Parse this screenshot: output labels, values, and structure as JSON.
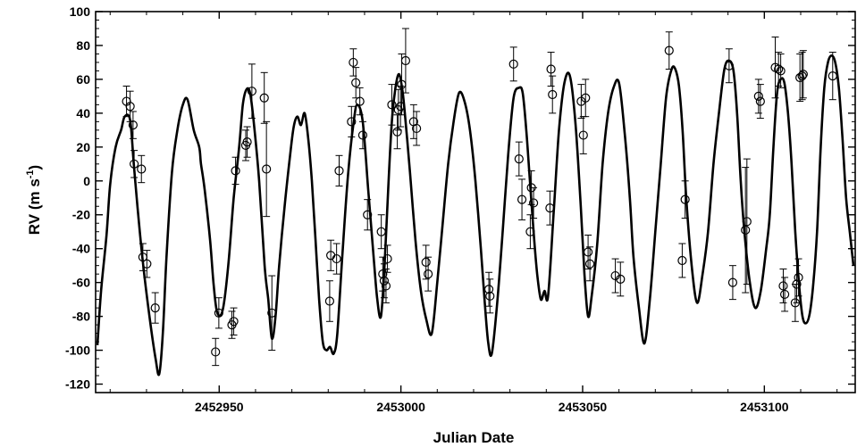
{
  "chart_data": {
    "type": "scatter",
    "title": "",
    "xlabel": "Julian Date",
    "ylabel_main": "RV (m s",
    "ylabel_sup": "-1",
    "ylabel_close": ")",
    "xlim": [
      2452916,
      2453125
    ],
    "ylim": [
      -125,
      100
    ],
    "xticks": [
      2452950,
      2453000,
      2453050,
      2453100
    ],
    "xtick_labels": [
      "2452950",
      "2453000",
      "2453050",
      "2453100"
    ],
    "yticks": [
      100,
      80,
      60,
      40,
      20,
      0,
      -20,
      -40,
      -60,
      -80,
      -100,
      -120
    ],
    "ytick_labels": [
      "100",
      "80",
      "60",
      "40",
      "20",
      "0",
      "-20",
      "-40",
      "-60",
      "-80",
      "-100",
      "-120"
    ],
    "grid": false,
    "series": [
      {
        "kind": "points",
        "x": [
          2452924.5,
          2452925.5,
          2452926.3,
          2452926.6,
          2452928.6,
          2452929.0,
          2452930.1,
          2452932.4,
          2452949.0,
          2452949.9,
          2452953.5,
          2452954.0,
          2452954.5,
          2452957.3,
          2452957.7,
          2452959.0,
          2452962.4,
          2452963.0,
          2452964.5,
          2452980.4,
          2452980.7,
          2452982.3,
          2452983.0,
          2452986.4,
          2452986.9,
          2452987.6,
          2452988.7,
          2452989.5,
          2452990.8,
          2452994.6,
          2452995.0,
          2452995.4,
          2452995.9,
          2452996.3,
          2452997.5,
          2452999.0,
          2452999.3,
          2452999.9,
          2453000.2,
          2453001.3,
          2453003.5,
          2453004.3,
          2453006.9,
          2453007.5,
          2453024.2,
          2453024.5,
          2453031.0,
          2453032.5,
          2453033.3,
          2453035.6,
          2453035.9,
          2453036.5,
          2453041.0,
          2453041.3,
          2453041.7,
          2453049.6,
          2453050.2,
          2453050.8,
          2453051.5,
          2453052.0,
          2453059.0,
          2453060.4,
          2453073.8,
          2453077.4,
          2453078.2,
          2453090.3,
          2453091.3,
          2453094.8,
          2453095.2,
          2453098.4,
          2453098.9,
          2453103.0,
          2453103.9,
          2453104.5,
          2453105.2,
          2453105.6,
          2453108.5,
          2453108.9,
          2453109.4,
          2453109.8,
          2453110.4,
          2453110.7,
          2453118.8
        ],
        "y": [
          47,
          44,
          33,
          10,
          7,
          -45,
          -49,
          -75,
          -101,
          -78,
          -85,
          -83,
          6,
          21,
          23,
          53,
          49,
          7,
          -78,
          -71,
          -44,
          -46,
          6,
          35,
          70,
          58,
          47,
          27,
          -20,
          -30,
          -55,
          -59,
          -62,
          -46,
          45,
          29,
          42,
          44,
          57,
          71,
          35,
          31,
          -48,
          -55,
          -64,
          -68,
          69,
          13,
          -11,
          -30,
          -4,
          -13,
          -16,
          66,
          51,
          47,
          27,
          49,
          -42,
          -49,
          -56,
          -58,
          77,
          -47,
          -11,
          68,
          -60,
          -29,
          -24,
          50,
          47,
          67,
          66,
          65,
          -62,
          -67,
          -72,
          -61,
          -57,
          61,
          62,
          63,
          62
        ],
        "err": [
          9,
          9,
          8,
          8,
          8,
          8,
          8,
          9,
          8,
          9,
          8,
          8,
          8,
          9,
          9,
          16,
          15,
          28,
          22,
          12,
          9,
          9,
          9,
          9,
          8,
          9,
          8,
          8,
          9,
          10,
          10,
          10,
          10,
          8,
          12,
          10,
          12,
          12,
          18,
          19,
          10,
          10,
          10,
          10,
          10,
          10,
          10,
          10,
          12,
          10,
          10,
          9,
          10,
          10,
          11,
          10,
          11,
          11,
          10,
          10,
          10,
          10,
          11,
          10,
          11,
          10,
          10,
          37,
          37,
          10,
          10,
          18,
          10,
          10,
          10,
          10,
          11,
          11,
          11,
          14,
          14,
          14,
          14
        ]
      },
      {
        "kind": "model",
        "x": [
          2452916.5,
          2452917.5,
          2452919,
          2452920,
          2452921.5,
          2452923,
          2452924,
          2452925.5,
          2452926.5,
          2452927.5,
          2452929,
          2452931,
          2452932.5,
          2452933.5,
          2452934.5,
          2452935.5,
          2452937,
          2452938.5,
          2452940,
          2452941.3,
          2452943,
          2452944.5,
          2452945,
          2452946,
          2452947.5,
          2452948.5,
          2452949.5,
          2452951,
          2452952.5,
          2452954,
          2452955.5,
          2452956.5,
          2452957.5,
          2452958.5,
          2452959.5,
          2452961,
          2452962.5,
          2452963.5,
          2452964.5,
          2452965.5,
          2452966.5,
          2452968,
          2452969.5,
          2452970.5,
          2452971.5,
          2452972.5,
          2452973.5,
          2452974.5,
          2452975.5,
          2452976.5,
          2452977.5,
          2452978.5,
          2452979.5,
          2452980.5,
          2452981.5,
          2452982.5,
          2452984,
          2452985.5,
          2452987,
          2452988,
          2452989.5,
          2452991,
          2452992.5,
          2452993.5,
          2452994.5,
          2452995.5,
          2452996.5,
          2452997.5,
          2452998.5,
          2452999.5,
          2453000.5,
          2453001.5,
          2453002.5,
          2453004,
          2453005.5,
          2453007,
          2453008.5,
          2453010,
          2453011.5,
          2453013,
          2453014.5,
          2453016,
          2453017.5,
          2453019,
          2453020.5,
          2453022,
          2453023,
          2453024,
          2453025,
          2453026.5,
          2453028,
          2453029.5,
          2453031,
          2453032.5,
          2453033.5,
          2453034.5,
          2453035.5,
          2453036.5,
          2453037.5,
          2453038.5,
          2453039.5,
          2453040.5,
          2453042,
          2453043.5,
          2453045,
          2453046.5,
          2453048,
          2453049.5,
          2453050.5,
          2453051.5,
          2453052.5,
          2453054,
          2453055.5,
          2453057,
          2453058.5,
          2453060,
          2453061.5,
          2453063,
          2453064,
          2453065.5,
          2453067,
          2453068.5,
          2453070,
          2453071.5,
          2453073,
          2453074.5,
          2453075.5,
          2453076.5,
          2453077.5,
          2453078.5,
          2453080,
          2453081.5,
          2453083,
          2453084.5,
          2453086,
          2453087.5,
          2453089,
          2453090.3,
          2453091.5,
          2453092.5,
          2453093.5,
          2453094.5,
          2453096,
          2453097.5,
          2453099,
          2453100.5,
          2453101.5,
          2453102.5,
          2453103.5,
          2453104.5,
          2453105.5,
          2453106.5,
          2453107.5,
          2453108.5,
          2453109.5,
          2453110.5,
          2453111.5,
          2453112.5,
          2453113.5,
          2453114.5,
          2453115.5,
          2453116.5,
          2453117.5,
          2453118.5,
          2453119.5,
          2453120.5,
          2453121.5,
          2453122.5,
          2453123.5,
          2453124.5
        ],
        "y": [
          -97,
          -65,
          -32,
          -2,
          20,
          30,
          38,
          36,
          10,
          -15,
          -48,
          -83,
          -105,
          -114,
          -90,
          -45,
          5,
          30,
          45,
          48,
          30,
          20,
          10,
          -5,
          -35,
          -62,
          -78,
          -76,
          -50,
          -10,
          20,
          45,
          54,
          52,
          35,
          0,
          -50,
          -70,
          -93,
          -80,
          -50,
          -15,
          15,
          32,
          38,
          33,
          40,
          25,
          0,
          -35,
          -70,
          -95,
          -100,
          -98,
          -102,
          -90,
          -40,
          5,
          35,
          45,
          35,
          -5,
          -45,
          -70,
          -80,
          -50,
          -5,
          35,
          55,
          63,
          52,
          30,
          5,
          -35,
          -65,
          -82,
          -90,
          -60,
          -25,
          10,
          35,
          52,
          47,
          30,
          0,
          -40,
          -70,
          -95,
          -102,
          -72,
          -30,
          15,
          49,
          55,
          52,
          30,
          0,
          -30,
          -55,
          -70,
          -65,
          -68,
          -20,
          30,
          58,
          62,
          35,
          -15,
          -55,
          -80,
          -68,
          -38,
          10,
          40,
          55,
          58,
          30,
          -10,
          -45,
          -75,
          -96,
          -70,
          -30,
          10,
          50,
          66,
          66,
          56,
          30,
          -10,
          -50,
          -72,
          -55,
          -30,
          10,
          40,
          66,
          71,
          65,
          40,
          0,
          -30,
          -60,
          -75,
          -65,
          -40,
          -20,
          20,
          52,
          60,
          58,
          40,
          10,
          -30,
          -60,
          -80,
          -84,
          -78,
          -60,
          -30,
          20,
          55,
          70,
          74,
          70,
          55,
          25,
          -10,
          -30,
          -50
        ]
      }
    ]
  }
}
